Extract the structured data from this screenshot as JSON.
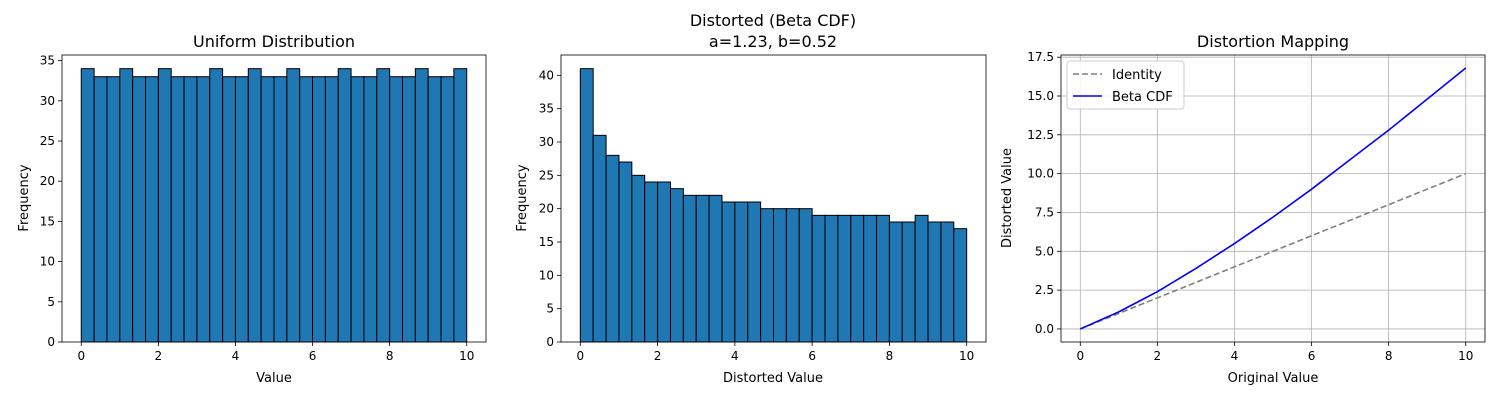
{
  "chart_data": [
    {
      "type": "bar",
      "title": "Uniform Distribution",
      "xlabel": "Value",
      "ylabel": "Frequency",
      "xlim": [
        -0.5,
        10.5
      ],
      "ylim": [
        0,
        35.7
      ],
      "xticks": [
        0,
        2,
        4,
        6,
        8,
        10
      ],
      "yticks": [
        0,
        5,
        10,
        15,
        20,
        25,
        30,
        35
      ],
      "bin_edges_range": [
        0,
        10
      ],
      "bins": 30,
      "values": [
        34,
        33,
        33,
        34,
        33,
        33,
        34,
        33,
        33,
        33,
        34,
        33,
        33,
        34,
        33,
        33,
        34,
        33,
        33,
        33,
        34,
        33,
        33,
        34,
        33,
        33,
        34,
        33,
        33,
        34
      ],
      "bar_color": "#1f77b4",
      "edge_color": "#000000"
    },
    {
      "type": "bar",
      "title": "Distorted (Beta CDF)",
      "subtitle": "a=1.23, b=0.52",
      "xlabel": "Distorted Value",
      "ylabel": "Frequency",
      "xlim": [
        -0.5,
        10.5
      ],
      "ylim": [
        0,
        43.05
      ],
      "xticks": [
        0,
        2,
        4,
        6,
        8,
        10
      ],
      "yticks": [
        0,
        5,
        10,
        15,
        20,
        25,
        30,
        35,
        40
      ],
      "bin_edges_range": [
        0,
        10
      ],
      "bins": 30,
      "values": [
        41,
        31,
        28,
        27,
        25,
        24,
        24,
        23,
        22,
        22,
        22,
        21,
        21,
        21,
        20,
        20,
        20,
        20,
        19,
        19,
        19,
        19,
        19,
        19,
        18,
        18,
        19,
        18,
        18,
        17
      ],
      "bar_color": "#1f77b4",
      "edge_color": "#000000"
    },
    {
      "type": "line",
      "title": "Distortion Mapping",
      "xlabel": "Original Value",
      "ylabel": "Distorted Value",
      "xlim": [
        -0.5,
        10.5
      ],
      "ylim": [
        -0.84,
        17.64
      ],
      "xticks": [
        0,
        2,
        4,
        6,
        8,
        10
      ],
      "yticks": [
        0.0,
        2.5,
        5.0,
        7.5,
        10.0,
        12.5,
        15.0,
        17.5
      ],
      "ytick_labels": [
        "0.0",
        "2.5",
        "5.0",
        "7.5",
        "10.0",
        "12.5",
        "15.0",
        "17.5"
      ],
      "grid": true,
      "legend": "top-left",
      "series": [
        {
          "name": "Identity",
          "style": "dashed",
          "color": "#808080",
          "x": [
            0,
            10
          ],
          "y": [
            0,
            10
          ]
        },
        {
          "name": "Beta CDF",
          "style": "solid",
          "color": "#0000ff",
          "x": [
            0,
            1,
            2,
            3,
            4,
            5,
            6,
            7,
            8,
            9,
            10
          ],
          "y": [
            0,
            1.1,
            2.4,
            3.9,
            5.5,
            7.2,
            9.0,
            10.9,
            12.8,
            14.8,
            16.8
          ]
        }
      ]
    }
  ]
}
